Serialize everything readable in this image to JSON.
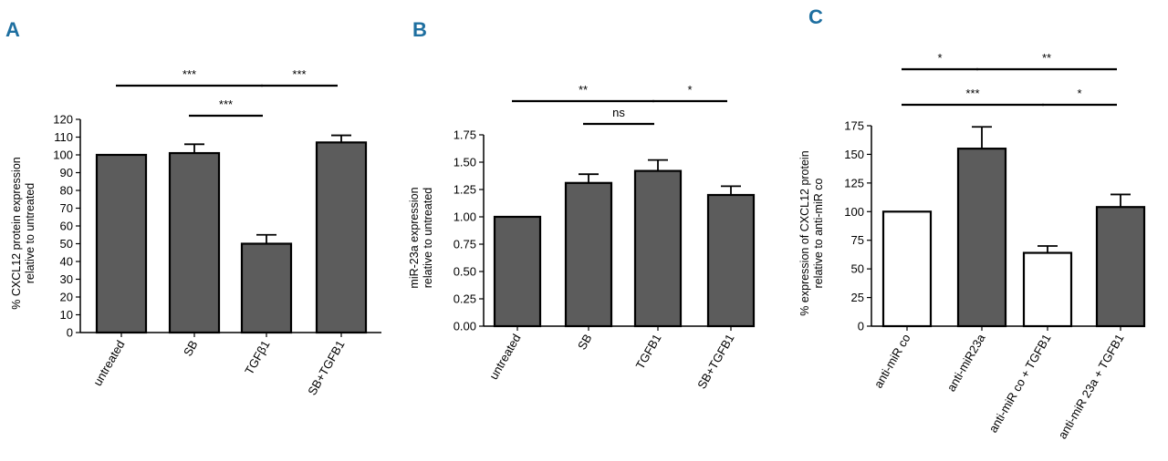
{
  "colors": {
    "bar_dark": "#5c5c5c",
    "bar_white": "#ffffff",
    "stroke": "#000000",
    "panel_letter": "#1e6fa0"
  },
  "chart_data": [
    {
      "panel": "A",
      "type": "bar",
      "categories": [
        "untreated",
        "SB",
        "TGFβ1",
        "SB+TGFB1"
      ],
      "values": [
        100,
        101,
        50,
        107
      ],
      "errors": [
        0,
        5,
        5,
        4
      ],
      "bar_fills": [
        "dark",
        "dark",
        "dark",
        "dark"
      ],
      "ylabel": [
        "% CXCL12 protein expression",
        "relative to untreated"
      ],
      "ylim": [
        0,
        120
      ],
      "yticks": [
        0,
        10,
        20,
        30,
        40,
        50,
        60,
        70,
        80,
        90,
        100,
        110,
        120
      ],
      "tick_labels": [
        "0",
        "10",
        "20",
        "30",
        "40",
        "50",
        "60",
        "70",
        "80",
        "90",
        "100",
        "110",
        "120"
      ],
      "significance": [
        {
          "from": 0,
          "to": 2,
          "label": "***",
          "level": 0
        },
        {
          "from": 2,
          "to": 3,
          "label": "***",
          "level": 0
        },
        {
          "from": 1,
          "to": 2,
          "label": "***",
          "level": 1
        }
      ]
    },
    {
      "panel": "B",
      "type": "bar",
      "categories": [
        "untreated",
        "SB",
        "TGFB1",
        "SB+TGFB1"
      ],
      "values": [
        1.0,
        1.31,
        1.42,
        1.2
      ],
      "errors": [
        0,
        0.08,
        0.1,
        0.08
      ],
      "bar_fills": [
        "dark",
        "dark",
        "dark",
        "dark"
      ],
      "ylabel": [
        "miR-23a expression",
        "relative to untreated"
      ],
      "ylim": [
        0,
        1.75
      ],
      "yticks": [
        0,
        0.25,
        0.5,
        0.75,
        1.0,
        1.25,
        1.5,
        1.75
      ],
      "tick_labels": [
        "0.00",
        "0.25",
        "0.50",
        "0.75",
        "1.00",
        "1.25",
        "1.50",
        "1.75"
      ],
      "significance": [
        {
          "from": 0,
          "to": 2,
          "label": "**",
          "level": 0
        },
        {
          "from": 2,
          "to": 3,
          "label": "*",
          "level": 0
        },
        {
          "from": 1,
          "to": 2,
          "label": "ns",
          "level": 1
        }
      ]
    },
    {
      "panel": "C",
      "type": "bar",
      "categories": [
        "anti-miR co",
        "anti-miR23a",
        "anti-miR co + TGFB1",
        "anti-miR 23a + TGFB1"
      ],
      "values": [
        100,
        155,
        64,
        104
      ],
      "errors": [
        0,
        19,
        6,
        11
      ],
      "bar_fills": [
        "white",
        "dark",
        "white",
        "dark"
      ],
      "ylabel": [
        "% expression of CXCL12 protein",
        "relative to anti-miR co"
      ],
      "ylim": [
        0,
        175
      ],
      "yticks": [
        0,
        25,
        50,
        75,
        100,
        125,
        150,
        175
      ],
      "tick_labels": [
        "0",
        "25",
        "50",
        "75",
        "100",
        "125",
        "150",
        "175"
      ],
      "significance": [
        {
          "from": 0,
          "to": 1,
          "label": "*",
          "level": -1
        },
        {
          "from": 1,
          "to": 3,
          "label": "**",
          "level": -1
        },
        {
          "from": 0,
          "to": 2,
          "label": "***",
          "level": 0
        },
        {
          "from": 2,
          "to": 3,
          "label": "*",
          "level": 0
        }
      ]
    }
  ]
}
